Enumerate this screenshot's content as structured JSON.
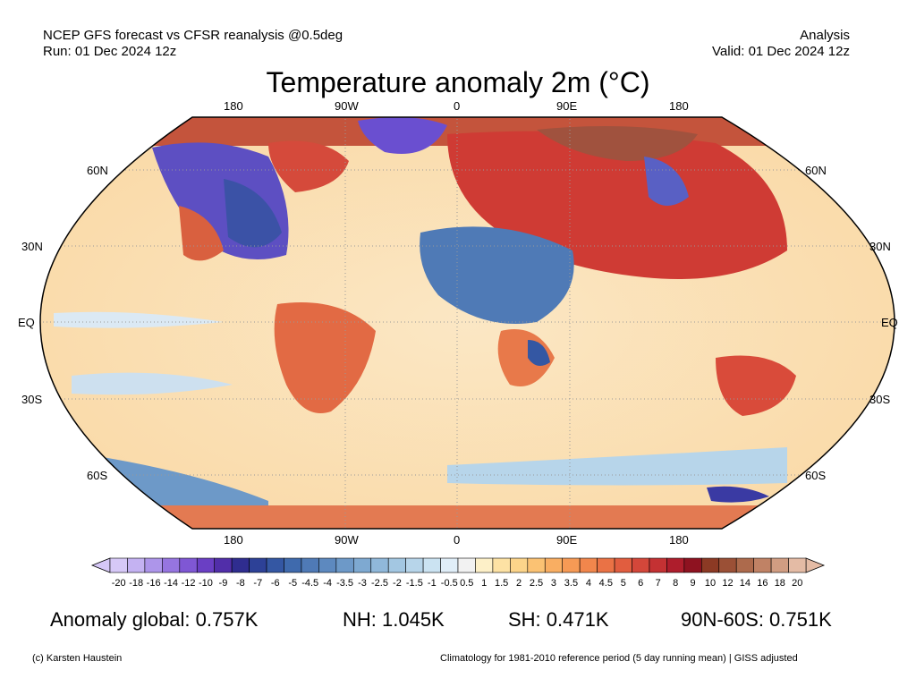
{
  "header": {
    "source_line": "NCEP GFS forecast vs CFSR reanalysis @0.5deg",
    "run_line": "Run: 01 Dec 2024 12z",
    "product": "Analysis",
    "valid_line": "Valid: 01 Dec 2024 12z"
  },
  "title": "Temperature anomaly 2m (°C)",
  "map": {
    "lon_labels_top": [
      "180",
      "90W",
      "0",
      "90E",
      "180"
    ],
    "lon_labels_bottom": [
      "180",
      "90W",
      "0",
      "90E",
      "180"
    ],
    "lat_labels_left": [
      "60N",
      "30N",
      "EQ",
      "30S",
      "60S"
    ],
    "lat_labels_right": [
      "60N",
      "30N",
      "EQ",
      "30S",
      "60S"
    ]
  },
  "colorbar": {
    "ticks": [
      "-20",
      "-18",
      "-16",
      "-14",
      "-12",
      "-10",
      "-9",
      "-8",
      "-7",
      "-6",
      "-5",
      "-4.5",
      "-4",
      "-3.5",
      "-3",
      "-2.5",
      "-2",
      "-1.5",
      "-1",
      "-0.5",
      "0.5",
      "1",
      "1.5",
      "2",
      "2.5",
      "3",
      "3.5",
      "4",
      "4.5",
      "5",
      "6",
      "7",
      "8",
      "9",
      "10",
      "12",
      "14",
      "16",
      "18",
      "20"
    ],
    "colors": [
      "#d6c8f7",
      "#c4b2f2",
      "#ad95ea",
      "#9675e0",
      "#7f57d4",
      "#6a3fc4",
      "#512ea9",
      "#2f2d8f",
      "#2d4197",
      "#3457a3",
      "#3f6aad",
      "#4f7ab6",
      "#5d89bf",
      "#6d99c8",
      "#7ea9d1",
      "#90b8da",
      "#a3c7e2",
      "#b7d5ea",
      "#cbe3f2",
      "#e0eef8",
      "#f2f2f2",
      "#fdf0c8",
      "#fde2a4",
      "#fcd48a",
      "#fbc273",
      "#f9ae62",
      "#f69a55",
      "#f1864c",
      "#ea7245",
      "#e15d3f",
      "#d4473a",
      "#c43133",
      "#ae1d2c",
      "#8e1220",
      "#8c3a24",
      "#9b5036",
      "#ad6a4c",
      "#c08265",
      "#d19d82",
      "#e4bba5"
    ]
  },
  "stats": {
    "global": "Anomaly global: 0.757K",
    "nh": "NH: 1.045K",
    "sh": "SH: 0.471K",
    "arctic": "90N-60S: 0.751K"
  },
  "footer": {
    "credit": "(c) Karsten Haustein",
    "note": "Climatology for 1981-2010 reference period (5 day running mean) | GISS adjusted"
  }
}
